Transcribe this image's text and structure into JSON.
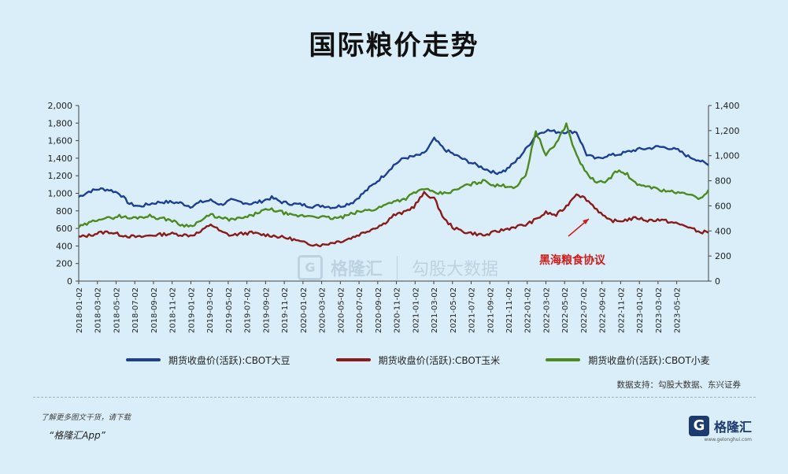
{
  "title": "国际粮价走势",
  "watermark": {
    "brand": "格隆汇",
    "logo": "G",
    "partner": "勾股大数据"
  },
  "annotation": "黑海粮食协议",
  "source": "数据支持：勾股大数据、东兴证券",
  "footer": {
    "note": "了解更多图文干货，请下载",
    "app": "“格隆汇App”"
  },
  "brand": {
    "logo": "G",
    "name": "格隆汇",
    "url": "www.gelonghui.com"
  },
  "colors": {
    "soy": "#1c3f94",
    "corn": "#8b1a1a",
    "wheat": "#4d8a1f",
    "annotation": "#d21b1b"
  },
  "chart_data": {
    "type": "line",
    "title": "国际粮价走势",
    "x_tick_labels": [
      "2018-01-02",
      "2018-03-02",
      "2018-05-02",
      "2018-07-02",
      "2018-09-02",
      "2018-11-02",
      "2019-01-02",
      "2019-03-02",
      "2019-05-02",
      "2019-07-02",
      "2019-09-02",
      "2019-11-02",
      "2020-01-02",
      "2020-03-02",
      "2020-05-02",
      "2020-07-02",
      "2020-09-02",
      "2020-11-02",
      "2021-01-02",
      "2021-03-02",
      "2021-05-02",
      "2021-07-02",
      "2021-09-02",
      "2021-11-02",
      "2022-01-02",
      "2022-03-02",
      "2022-05-02",
      "2022-07-02",
      "2022-09-02",
      "2022-11-02",
      "2023-01-02",
      "2023-03-02",
      "2023-05-02"
    ],
    "y_left": {
      "min": 0,
      "max": 2000,
      "ticks": [
        "0",
        "200",
        "400",
        "600",
        "800",
        "1,000",
        "1,200",
        "1,400",
        "1,600",
        "1,800",
        "2,000"
      ]
    },
    "y_right": {
      "min": 0,
      "max": 1400,
      "ticks": [
        "0",
        "200",
        "400",
        "600",
        "800",
        "1,000",
        "1,200",
        "1,400"
      ]
    },
    "legend_position": "bottom",
    "series": [
      {
        "name": "期货收盘价(活跃):CBOT大豆",
        "axis": "left",
        "color": "#1c3f94",
        "values": [
          960,
          1020,
          1050,
          1040,
          1000,
          880,
          850,
          880,
          900,
          900,
          890,
          850,
          900,
          920,
          870,
          920,
          900,
          880,
          910,
          950,
          900,
          880,
          870,
          850,
          860,
          840,
          860,
          900,
          1000,
          1100,
          1200,
          1320,
          1400,
          1420,
          1450,
          1620,
          1500,
          1440,
          1380,
          1330,
          1280,
          1230,
          1260,
          1360,
          1500,
          1660,
          1720,
          1700,
          1700,
          1700,
          1440,
          1390,
          1430,
          1440,
          1470,
          1500,
          1510,
          1530,
          1520,
          1490,
          1420,
          1380,
          1320
        ]
      },
      {
        "name": "期货收盘价(活跃):CBOT玉米",
        "axis": "left",
        "color": "#8b1a1a",
        "values": [
          500,
          520,
          550,
          560,
          530,
          510,
          500,
          520,
          530,
          540,
          530,
          520,
          560,
          650,
          560,
          520,
          540,
          550,
          530,
          520,
          500,
          480,
          440,
          420,
          410,
          440,
          460,
          500,
          550,
          600,
          650,
          750,
          780,
          850,
          1000,
          940,
          700,
          600,
          560,
          540,
          520,
          560,
          590,
          620,
          640,
          700,
          780,
          750,
          850,
          1000,
          930,
          820,
          700,
          680,
          700,
          720,
          690,
          700,
          680,
          650,
          620,
          560,
          560
        ]
      },
      {
        "name": "期货收盘价(活跃):CBOT小麦",
        "axis": "right",
        "color": "#4d8a1f",
        "values": [
          430,
          460,
          500,
          500,
          520,
          500,
          510,
          520,
          500,
          490,
          450,
          440,
          480,
          530,
          500,
          490,
          500,
          520,
          560,
          570,
          550,
          520,
          520,
          520,
          510,
          500,
          510,
          540,
          560,
          570,
          600,
          640,
          650,
          700,
          740,
          700,
          700,
          720,
          760,
          780,
          800,
          760,
          760,
          750,
          840,
          1200,
          1000,
          1100,
          1250,
          1000,
          860,
          780,
          800,
          880,
          850,
          760,
          760,
          730,
          720,
          700,
          700,
          650,
          720
        ]
      }
    ]
  }
}
